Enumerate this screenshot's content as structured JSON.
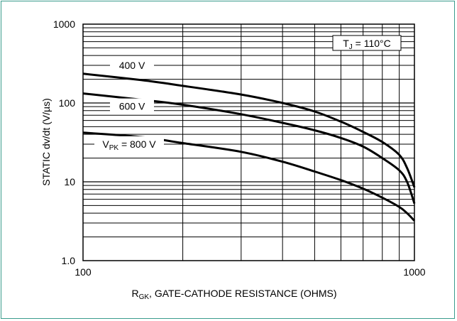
{
  "chart_data": {
    "type": "line",
    "xscale": "log",
    "yscale": "log",
    "xlim": [
      100,
      1000
    ],
    "ylim": [
      1,
      1000
    ],
    "grid": true,
    "x_ticks": [
      "100",
      "1000"
    ],
    "y_ticks": [
      "1000",
      "100",
      "10",
      "1.0"
    ],
    "xlabel": {
      "main": "R",
      "sub": "GK",
      "rest": ", GATE-CATHODE RESISTANCE (OHMS)"
    },
    "ylabel": "STATIC dv/dt (V/µs)",
    "condition": {
      "main": "T",
      "sub": "J",
      "rest": " = 110°C"
    },
    "series": [
      {
        "name": "400 V",
        "x": [
          100,
          150,
          200,
          300,
          400,
          500,
          600,
          700,
          800,
          900,
          950,
          1000
        ],
        "y": [
          235,
          195,
          165,
          128,
          100,
          78,
          58,
          43,
          32,
          22,
          15,
          8.5
        ]
      },
      {
        "name": "600 V",
        "x": [
          100,
          150,
          200,
          300,
          400,
          500,
          600,
          700,
          800,
          900,
          950,
          1000
        ],
        "y": [
          132,
          110,
          95,
          72,
          56,
          45,
          36,
          28,
          20,
          14,
          10,
          5.3
        ]
      },
      {
        "name": "800 V",
        "x": [
          100,
          150,
          200,
          300,
          400,
          500,
          600,
          700,
          800,
          900,
          950,
          1000
        ],
        "y": [
          42,
          37,
          31,
          24,
          18,
          13.5,
          10.5,
          8.2,
          6.3,
          4.8,
          4,
          3.2
        ]
      }
    ],
    "curve_labels": [
      {
        "series": 0,
        "main": "400 V",
        "sub": "",
        "rest": ""
      },
      {
        "series": 1,
        "main": "600 V",
        "sub": "",
        "rest": ""
      },
      {
        "series": 2,
        "main": "V",
        "sub": "PK",
        "rest": " = 800 V"
      }
    ]
  }
}
